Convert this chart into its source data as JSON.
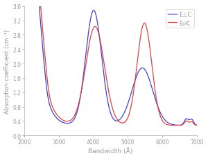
{
  "title": "",
  "xlabel": "Bandwidth (Å)",
  "ylabel": "Absorption coefficient (cm⁻¹)",
  "xlim": [
    2000,
    7000
  ],
  "ylim": [
    0.0,
    3.6
  ],
  "yticks": [
    0.0,
    0.4,
    0.8,
    1.2,
    1.6,
    2.0,
    2.4,
    2.8,
    3.2,
    3.6
  ],
  "xticks": [
    2000,
    3000,
    4000,
    5000,
    6000,
    7000
  ],
  "legend": [
    {
      "label": "E∕∕C",
      "color": "#e04040"
    },
    {
      "label": "E⊥C",
      "color": "#4040d0"
    }
  ],
  "background_color": "#ffffff",
  "line_color_red": "#e04040",
  "line_color_blue": "#4040d0"
}
